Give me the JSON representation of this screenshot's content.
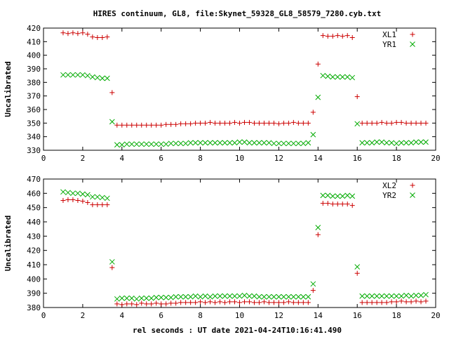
{
  "chart_data": {
    "title": "HIRES continuum, GL8, file:Skynet_59328_GL8_58579_7280.cyb.txt",
    "xlabel": "rel seconds : UT date 2021-04-24T10:16:41.490",
    "type": "scatter",
    "panels": [
      {
        "ylabel": "Uncalibrated",
        "xlim": [
          0,
          20
        ],
        "ylim": [
          330,
          420
        ],
        "xticks": [
          0,
          2,
          4,
          6,
          8,
          10,
          12,
          14,
          16,
          18,
          20
        ],
        "yticks": [
          330,
          340,
          350,
          360,
          370,
          380,
          390,
          400,
          410,
          420
        ],
        "legend_position": "top-right",
        "series": [
          {
            "name": "XL1",
            "marker": "plus",
            "color": "#cc0000",
            "x": [
              1.0,
              1.25,
              1.5,
              1.75,
              2.0,
              2.25,
              2.5,
              2.75,
              3.0,
              3.25,
              3.5,
              3.75,
              4.0,
              4.25,
              4.5,
              4.75,
              5.0,
              5.25,
              5.5,
              5.75,
              6.0,
              6.25,
              6.5,
              6.75,
              7.0,
              7.25,
              7.5,
              7.75,
              8.0,
              8.25,
              8.5,
              8.75,
              9.0,
              9.25,
              9.5,
              9.75,
              10.0,
              10.25,
              10.5,
              10.75,
              11.0,
              11.25,
              11.5,
              11.75,
              12.0,
              12.25,
              12.5,
              12.75,
              13.0,
              13.25,
              13.5,
              13.75,
              14.0,
              14.25,
              14.5,
              14.75,
              15.0,
              15.25,
              15.5,
              15.75,
              16.0,
              16.25,
              16.5,
              16.75,
              17.0,
              17.25,
              17.5,
              17.75,
              18.0,
              18.25,
              18.5,
              18.75,
              19.0,
              19.25,
              19.5
            ],
            "y": [
              416.5,
              416.0,
              416.5,
              416.0,
              416.5,
              415.5,
              413.5,
              413.0,
              413.0,
              413.5,
              372.5,
              348.5,
              348.5,
              348.5,
              348.5,
              348.5,
              348.5,
              348.5,
              348.5,
              348.5,
              348.5,
              349.0,
              349.0,
              349.0,
              349.5,
              349.5,
              349.5,
              350.0,
              350.0,
              350.0,
              350.5,
              350.0,
              350.0,
              350.0,
              350.0,
              350.5,
              350.0,
              350.5,
              350.5,
              350.0,
              350.0,
              350.0,
              350.0,
              350.0,
              349.5,
              350.0,
              350.0,
              350.5,
              350.0,
              350.0,
              350.0,
              358.0,
              393.5,
              414.5,
              414.0,
              414.0,
              414.5,
              414.0,
              414.5,
              413.0,
              369.5,
              350.0,
              350.0,
              350.0,
              350.0,
              350.5,
              350.0,
              350.0,
              350.5,
              350.5,
              350.0,
              350.0,
              350.0,
              350.0,
              350.0
            ]
          },
          {
            "name": "YR1",
            "marker": "x",
            "color": "#00aa00",
            "x": [
              1.0,
              1.25,
              1.5,
              1.75,
              2.0,
              2.25,
              2.5,
              2.75,
              3.0,
              3.25,
              3.5,
              3.75,
              4.0,
              4.25,
              4.5,
              4.75,
              5.0,
              5.25,
              5.5,
              5.75,
              6.0,
              6.25,
              6.5,
              6.75,
              7.0,
              7.25,
              7.5,
              7.75,
              8.0,
              8.25,
              8.5,
              8.75,
              9.0,
              9.25,
              9.5,
              9.75,
              10.0,
              10.25,
              10.5,
              10.75,
              11.0,
              11.25,
              11.5,
              11.75,
              12.0,
              12.25,
              12.5,
              12.75,
              13.0,
              13.25,
              13.5,
              13.75,
              14.0,
              14.25,
              14.5,
              14.75,
              15.0,
              15.25,
              15.5,
              15.75,
              16.0,
              16.25,
              16.5,
              16.75,
              17.0,
              17.25,
              17.5,
              17.75,
              18.0,
              18.25,
              18.5,
              18.75,
              19.0,
              19.25,
              19.5
            ],
            "y": [
              385.5,
              385.5,
              385.5,
              385.5,
              385.5,
              385.0,
              384.0,
              383.5,
              383.0,
              383.0,
              351.0,
              334.0,
              334.0,
              334.5,
              334.5,
              334.5,
              334.5,
              334.5,
              334.5,
              334.5,
              334.5,
              334.5,
              335.0,
              335.0,
              335.0,
              335.0,
              335.5,
              335.5,
              335.5,
              335.5,
              335.5,
              335.5,
              335.5,
              335.5,
              335.5,
              335.5,
              336.0,
              336.0,
              335.5,
              335.5,
              335.5,
              335.5,
              335.5,
              335.0,
              335.0,
              335.0,
              335.0,
              335.0,
              335.0,
              335.0,
              335.5,
              341.5,
              369.0,
              385.0,
              384.5,
              384.0,
              384.0,
              384.0,
              384.0,
              383.5,
              349.5,
              335.5,
              335.5,
              335.5,
              336.0,
              336.0,
              335.5,
              335.5,
              335.0,
              335.5,
              335.5,
              335.5,
              336.0,
              336.0,
              336.0
            ]
          }
        ]
      },
      {
        "ylabel": "Uncalibrated",
        "xlim": [
          0,
          20
        ],
        "ylim": [
          380,
          470
        ],
        "xticks": [
          0,
          2,
          4,
          6,
          8,
          10,
          12,
          14,
          16,
          18,
          20
        ],
        "yticks": [
          380,
          390,
          400,
          410,
          420,
          430,
          440,
          450,
          460,
          470
        ],
        "legend_position": "top-right",
        "series": [
          {
            "name": "XL2",
            "marker": "plus",
            "color": "#cc0000",
            "x": [
              1.0,
              1.25,
              1.5,
              1.75,
              2.0,
              2.25,
              2.5,
              2.75,
              3.0,
              3.25,
              3.5,
              3.75,
              4.0,
              4.25,
              4.5,
              4.75,
              5.0,
              5.25,
              5.5,
              5.75,
              6.0,
              6.25,
              6.5,
              6.75,
              7.0,
              7.25,
              7.5,
              7.75,
              8.0,
              8.25,
              8.5,
              8.75,
              9.0,
              9.25,
              9.5,
              9.75,
              10.0,
              10.25,
              10.5,
              10.75,
              11.0,
              11.25,
              11.5,
              11.75,
              12.0,
              12.25,
              12.5,
              12.75,
              13.0,
              13.25,
              13.5,
              13.75,
              14.0,
              14.25,
              14.5,
              14.75,
              15.0,
              15.25,
              15.5,
              15.75,
              16.0,
              16.25,
              16.5,
              16.75,
              17.0,
              17.25,
              17.5,
              17.75,
              18.0,
              18.25,
              18.5,
              18.75,
              19.0,
              19.25,
              19.5
            ],
            "y": [
              455.0,
              455.5,
              455.5,
              455.0,
              454.5,
              453.5,
              452.0,
              452.0,
              452.0,
              452.0,
              408.0,
              382.5,
              382.0,
              382.5,
              382.5,
              382.0,
              383.0,
              382.5,
              382.5,
              383.0,
              382.5,
              382.5,
              383.0,
              383.0,
              383.5,
              383.5,
              383.5,
              383.5,
              384.0,
              383.5,
              384.0,
              383.5,
              384.0,
              383.5,
              384.0,
              384.0,
              383.5,
              384.0,
              384.0,
              383.5,
              383.5,
              384.0,
              383.5,
              383.5,
              383.5,
              383.5,
              384.0,
              383.5,
              383.5,
              383.5,
              383.5,
              392.0,
              431.0,
              453.0,
              453.0,
              452.5,
              452.5,
              452.5,
              452.5,
              451.5,
              404.0,
              383.5,
              383.5,
              383.5,
              383.5,
              383.5,
              383.5,
              384.0,
              384.0,
              384.5,
              384.0,
              384.0,
              384.5,
              384.0,
              384.5
            ]
          },
          {
            "name": "YR2",
            "marker": "x",
            "color": "#00aa00",
            "x": [
              1.0,
              1.25,
              1.5,
              1.75,
              2.0,
              2.25,
              2.5,
              2.75,
              3.0,
              3.25,
              3.5,
              3.75,
              4.0,
              4.25,
              4.5,
              4.75,
              5.0,
              5.25,
              5.5,
              5.75,
              6.0,
              6.25,
              6.5,
              6.75,
              7.0,
              7.25,
              7.5,
              7.75,
              8.0,
              8.25,
              8.5,
              8.75,
              9.0,
              9.25,
              9.5,
              9.75,
              10.0,
              10.25,
              10.5,
              10.75,
              11.0,
              11.25,
              11.5,
              11.75,
              12.0,
              12.25,
              12.5,
              12.75,
              13.0,
              13.25,
              13.5,
              13.75,
              14.0,
              14.25,
              14.5,
              14.75,
              15.0,
              15.25,
              15.5,
              15.75,
              16.0,
              16.25,
              16.5,
              16.75,
              17.0,
              17.25,
              17.5,
              17.75,
              18.0,
              18.25,
              18.5,
              18.75,
              19.0,
              19.25,
              19.5
            ],
            "y": [
              461.0,
              460.5,
              460.0,
              460.0,
              459.5,
              459.0,
              457.5,
              457.5,
              457.0,
              456.5,
              412.0,
              386.0,
              386.5,
              386.5,
              386.5,
              386.0,
              386.5,
              386.5,
              386.5,
              387.0,
              387.0,
              387.0,
              387.0,
              387.5,
              387.5,
              387.5,
              387.5,
              388.0,
              387.5,
              388.0,
              387.5,
              388.0,
              388.0,
              388.0,
              388.0,
              388.0,
              388.0,
              388.5,
              388.0,
              388.0,
              387.5,
              387.5,
              387.5,
              387.5,
              387.5,
              387.5,
              387.5,
              387.5,
              387.5,
              387.5,
              387.5,
              396.5,
              436.0,
              458.5,
              458.5,
              458.0,
              458.0,
              458.0,
              458.5,
              458.0,
              408.5,
              388.0,
              388.0,
              388.0,
              388.0,
              388.0,
              388.0,
              388.0,
              388.0,
              388.0,
              388.5,
              388.0,
              388.5,
              388.5,
              389.0
            ]
          }
        ]
      }
    ]
  }
}
